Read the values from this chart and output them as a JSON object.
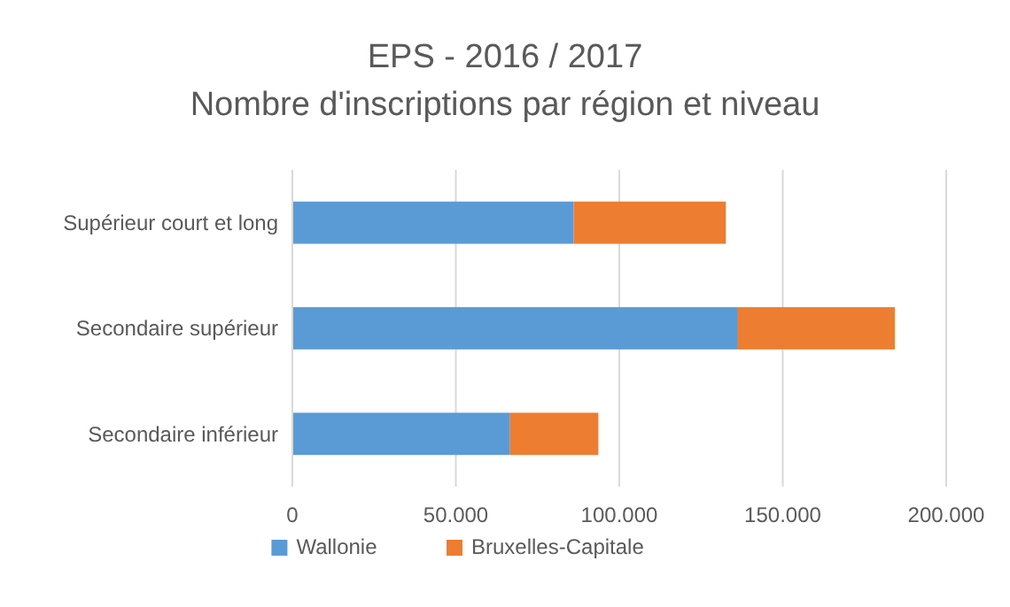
{
  "chart_data": {
    "type": "bar",
    "orientation": "horizontal",
    "stacked": true,
    "title": "EPS - 2016 / 2017",
    "subtitle": "Nombre d'inscriptions par région et niveau",
    "categories": [
      "Supérieur court et long",
      "Secondaire supérieur",
      "Secondaire inférieur"
    ],
    "series": [
      {
        "name": "Wallonie",
        "color": "#5b9bd5",
        "values": [
          86000,
          136300,
          66600
        ]
      },
      {
        "name": "Bruxelles-Capitale",
        "color": "#ed7d31",
        "values": [
          46600,
          48000,
          27000
        ]
      }
    ],
    "xlim": [
      0,
      200000
    ],
    "xticks": [
      {
        "value": 0,
        "label": "0"
      },
      {
        "value": 50000,
        "label": "50.000"
      },
      {
        "value": 100000,
        "label": "100.000"
      },
      {
        "value": 150000,
        "label": "150.000"
      },
      {
        "value": 200000,
        "label": "200.000"
      }
    ],
    "grid": "x",
    "legend": "bottom"
  }
}
